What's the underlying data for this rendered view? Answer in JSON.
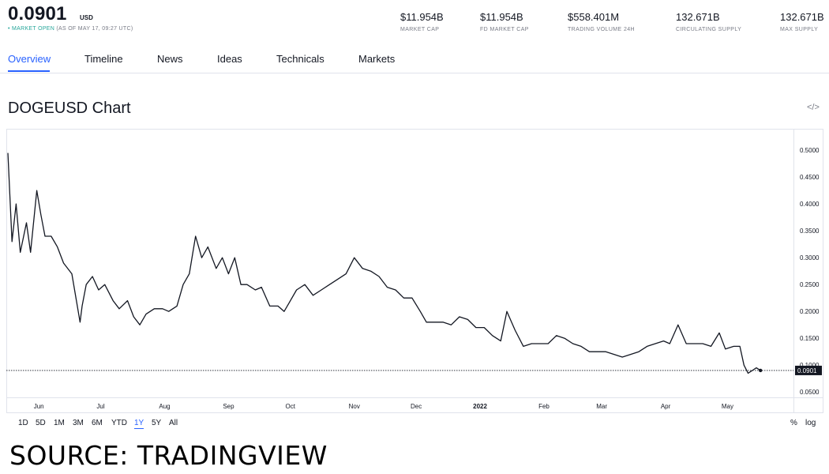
{
  "header": {
    "price": "0.0901",
    "unit": "USD",
    "status_open": "• MARKET OPEN",
    "status_time": "(AS OF MAY 17, 09:27 UTC)",
    "stats": [
      {
        "value": "$11.954B",
        "label": "MARKET CAP"
      },
      {
        "value": "$11.954B",
        "label": "FD MARKET CAP"
      },
      {
        "value": "$558.401M",
        "label": "TRADING VOLUME 24H"
      },
      {
        "value": "132.671B",
        "label": "CIRCULATING SUPPLY"
      },
      {
        "value": "132.671B",
        "label": "MAX SUPPLY"
      }
    ]
  },
  "tabs": [
    "Overview",
    "Timeline",
    "News",
    "Ideas",
    "Technicals",
    "Markets"
  ],
  "chart_title": "DOGEUSD Chart",
  "embed_icon": "code-embed-icon",
  "ranges": [
    "1D",
    "5D",
    "1M",
    "3M",
    "6M",
    "YTD",
    "1Y",
    "5Y",
    "All"
  ],
  "active_range": "1Y",
  "scale_options": [
    "%",
    "log"
  ],
  "source_text": "SOURCE: TRADINGVIEW",
  "colors": {
    "accent": "#2962ff",
    "line": "#131722",
    "open": "#26a69a",
    "grid": "#e0e3eb"
  },
  "chart_data": {
    "type": "line",
    "title": "DOGEUSD Chart",
    "xlabel": "",
    "ylabel": "",
    "x_tick_labels": [
      "Jun",
      "Jul",
      "Aug",
      "Sep",
      "Oct",
      "Nov",
      "Dec",
      "2022",
      "Feb",
      "Mar",
      "Apr",
      "May"
    ],
    "y_tick_labels": [
      "0.5000",
      "0.4500",
      "0.4000",
      "0.3500",
      "0.3000",
      "0.2500",
      "0.2000",
      "0.1500",
      "0.1000",
      "0.0500"
    ],
    "ylim": [
      0.04,
      0.54
    ],
    "grid": false,
    "last_value": 0.0901,
    "last_value_label": "0.0901",
    "series": [
      {
        "x": [
          "2021-05-17",
          "2021-05-19",
          "2021-05-21",
          "2021-05-23",
          "2021-05-26",
          "2021-05-28",
          "2021-05-31",
          "2021-06-02",
          "2021-06-04",
          "2021-06-07",
          "2021-06-10",
          "2021-06-13",
          "2021-06-17",
          "2021-06-21",
          "2021-06-22",
          "2021-06-24",
          "2021-06-27",
          "2021-06-30",
          "2021-07-03",
          "2021-07-07",
          "2021-07-10",
          "2021-07-14",
          "2021-07-17",
          "2021-07-20",
          "2021-07-23",
          "2021-07-27",
          "2021-07-31",
          "2021-08-03",
          "2021-08-07",
          "2021-08-10",
          "2021-08-13",
          "2021-08-16",
          "2021-08-19",
          "2021-08-22",
          "2021-08-26",
          "2021-08-29",
          "2021-09-01",
          "2021-09-04",
          "2021-09-07",
          "2021-09-10",
          "2021-09-14",
          "2021-09-17",
          "2021-09-21",
          "2021-09-25",
          "2021-09-28",
          "2021-10-01",
          "2021-10-04",
          "2021-10-08",
          "2021-10-12",
          "2021-10-16",
          "2021-10-20",
          "2021-10-24",
          "2021-10-28",
          "2021-11-01",
          "2021-11-05",
          "2021-11-09",
          "2021-11-13",
          "2021-11-17",
          "2021-11-21",
          "2021-11-25",
          "2021-11-29",
          "2021-12-03",
          "2021-12-06",
          "2021-12-10",
          "2021-12-14",
          "2021-12-18",
          "2021-12-22",
          "2021-12-26",
          "2021-12-30",
          "2022-01-03",
          "2022-01-07",
          "2022-01-11",
          "2022-01-14",
          "2022-01-18",
          "2022-01-22",
          "2022-01-26",
          "2022-01-30",
          "2022-02-03",
          "2022-02-07",
          "2022-02-11",
          "2022-02-15",
          "2022-02-19",
          "2022-02-23",
          "2022-02-27",
          "2022-03-03",
          "2022-03-07",
          "2022-03-11",
          "2022-03-15",
          "2022-03-19",
          "2022-03-23",
          "2022-03-27",
          "2022-03-31",
          "2022-04-03",
          "2022-04-07",
          "2022-04-11",
          "2022-04-15",
          "2022-04-19",
          "2022-04-23",
          "2022-04-27",
          "2022-04-30",
          "2022-05-04",
          "2022-05-07",
          "2022-05-09",
          "2022-05-11",
          "2022-05-13",
          "2022-05-15",
          "2022-05-17"
        ],
        "values": [
          0.495,
          0.33,
          0.4,
          0.31,
          0.365,
          0.31,
          0.425,
          0.38,
          0.34,
          0.34,
          0.32,
          0.29,
          0.27,
          0.18,
          0.21,
          0.25,
          0.265,
          0.24,
          0.25,
          0.22,
          0.205,
          0.22,
          0.19,
          0.175,
          0.195,
          0.205,
          0.205,
          0.2,
          0.21,
          0.25,
          0.27,
          0.34,
          0.3,
          0.32,
          0.28,
          0.3,
          0.27,
          0.3,
          0.25,
          0.25,
          0.24,
          0.245,
          0.21,
          0.21,
          0.2,
          0.22,
          0.24,
          0.25,
          0.23,
          0.24,
          0.25,
          0.26,
          0.27,
          0.3,
          0.28,
          0.275,
          0.265,
          0.245,
          0.24,
          0.225,
          0.225,
          0.2,
          0.18,
          0.18,
          0.18,
          0.175,
          0.19,
          0.185,
          0.17,
          0.17,
          0.155,
          0.145,
          0.2,
          0.165,
          0.135,
          0.14,
          0.14,
          0.14,
          0.155,
          0.15,
          0.14,
          0.135,
          0.125,
          0.125,
          0.125,
          0.12,
          0.115,
          0.12,
          0.125,
          0.135,
          0.14,
          0.145,
          0.14,
          0.175,
          0.14,
          0.14,
          0.14,
          0.135,
          0.16,
          0.13,
          0.135,
          0.135,
          0.1,
          0.085,
          0.09,
          0.095,
          0.0901
        ]
      }
    ]
  }
}
